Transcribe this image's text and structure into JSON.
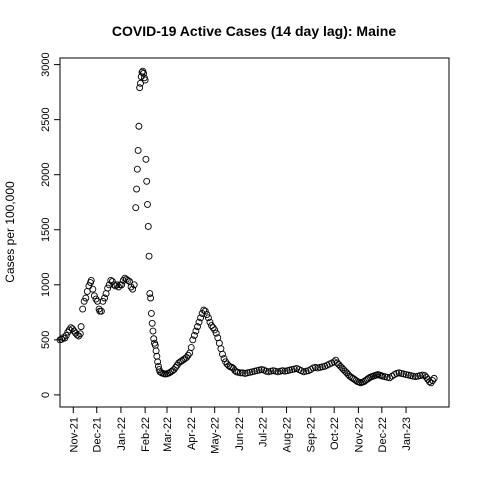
{
  "chart_data": {
    "type": "scatter",
    "title": "COVID-19 Active Cases (14 day lag): Maine",
    "xlabel": "",
    "ylabel": "Cases per 100,000",
    "y_ticks": [
      0,
      500,
      1000,
      1500,
      2000,
      2500,
      3000
    ],
    "x_ticks": [
      {
        "label": "Nov-21",
        "x": "2021-11-01"
      },
      {
        "label": "Dec-21",
        "x": "2021-12-01"
      },
      {
        "label": "Jan-22",
        "x": "2022-01-01"
      },
      {
        "label": "Feb-22",
        "x": "2022-02-01"
      },
      {
        "label": "Mar-22",
        "x": "2022-03-01"
      },
      {
        "label": "Apr-22",
        "x": "2022-04-01"
      },
      {
        "label": "May-22",
        "x": "2022-05-01"
      },
      {
        "label": "Jun-22",
        "x": "2022-06-01"
      },
      {
        "label": "Jul-22",
        "x": "2022-07-01"
      },
      {
        "label": "Aug-22",
        "x": "2022-08-01"
      },
      {
        "label": "Sep-22",
        "x": "2022-09-01"
      },
      {
        "label": "Oct-22",
        "x": "2022-10-01"
      },
      {
        "label": "Nov-22",
        "x": "2022-11-01"
      },
      {
        "label": "Dec-22",
        "x": "2022-12-01"
      },
      {
        "label": "Jan-23",
        "x": "2023-01-01"
      }
    ],
    "xlim": [
      "2021-10-15",
      "2023-02-25"
    ],
    "ylim": [
      -110,
      3060
    ],
    "grid": false,
    "legend": "none",
    "points": [
      [
        "2021-10-15",
        500
      ],
      [
        "2021-10-17",
        505
      ],
      [
        "2021-10-19",
        520
      ],
      [
        "2021-10-21",
        515
      ],
      [
        "2021-10-23",
        540
      ],
      [
        "2021-10-25",
        570
      ],
      [
        "2021-10-27",
        590
      ],
      [
        "2021-10-29",
        610
      ],
      [
        "2021-10-31",
        600
      ],
      [
        "2021-11-02",
        580
      ],
      [
        "2021-11-04",
        560
      ],
      [
        "2021-11-06",
        545
      ],
      [
        "2021-11-08",
        535
      ],
      [
        "2021-11-10",
        555
      ],
      [
        "2021-11-11",
        620
      ],
      [
        "2021-11-13",
        780
      ],
      [
        "2021-11-15",
        850
      ],
      [
        "2021-11-17",
        880
      ],
      [
        "2021-11-19",
        940
      ],
      [
        "2021-11-21",
        990
      ],
      [
        "2021-11-23",
        1020
      ],
      [
        "2021-11-24",
        1040
      ],
      [
        "2021-11-26",
        960
      ],
      [
        "2021-11-28",
        900
      ],
      [
        "2021-11-30",
        870
      ],
      [
        "2021-12-02",
        850
      ],
      [
        "2021-12-04",
        780
      ],
      [
        "2021-12-05",
        760
      ],
      [
        "2021-12-07",
        760
      ],
      [
        "2021-12-09",
        850
      ],
      [
        "2021-12-11",
        880
      ],
      [
        "2021-12-13",
        920
      ],
      [
        "2021-12-15",
        970
      ],
      [
        "2021-12-17",
        1000
      ],
      [
        "2021-12-19",
        1040
      ],
      [
        "2021-12-21",
        1030
      ],
      [
        "2021-12-23",
        1000
      ],
      [
        "2021-12-25",
        990
      ],
      [
        "2021-12-27",
        1000
      ],
      [
        "2021-12-29",
        980
      ],
      [
        "2021-12-31",
        1000
      ],
      [
        "2022-01-02",
        1000
      ],
      [
        "2022-01-04",
        1040
      ],
      [
        "2022-01-06",
        1060
      ],
      [
        "2022-01-08",
        1050
      ],
      [
        "2022-01-10",
        1040
      ],
      [
        "2022-01-12",
        1030
      ],
      [
        "2022-01-14",
        980
      ],
      [
        "2022-01-16",
        960
      ],
      [
        "2022-01-18",
        1000
      ],
      [
        "2022-01-20",
        1700
      ],
      [
        "2022-01-21",
        1870
      ],
      [
        "2022-01-22",
        2050
      ],
      [
        "2022-01-23",
        2220
      ],
      [
        "2022-01-24",
        2440
      ],
      [
        "2022-01-25",
        2790
      ],
      [
        "2022-01-26",
        2830
      ],
      [
        "2022-01-27",
        2890
      ],
      [
        "2022-01-28",
        2930
      ],
      [
        "2022-01-29",
        2940
      ],
      [
        "2022-01-30",
        2920
      ],
      [
        "2022-01-31",
        2880
      ],
      [
        "2022-02-01",
        2860
      ],
      [
        "2022-02-02",
        2140
      ],
      [
        "2022-02-03",
        1940
      ],
      [
        "2022-02-04",
        1730
      ],
      [
        "2022-02-05",
        1530
      ],
      [
        "2022-02-06",
        1260
      ],
      [
        "2022-02-07",
        920
      ],
      [
        "2022-02-08",
        880
      ],
      [
        "2022-02-09",
        740
      ],
      [
        "2022-02-10",
        650
      ],
      [
        "2022-02-11",
        580
      ],
      [
        "2022-02-12",
        510
      ],
      [
        "2022-02-13",
        470
      ],
      [
        "2022-02-14",
        450
      ],
      [
        "2022-02-15",
        400
      ],
      [
        "2022-02-16",
        350
      ],
      [
        "2022-02-17",
        300
      ],
      [
        "2022-02-18",
        260
      ],
      [
        "2022-02-19",
        230
      ],
      [
        "2022-02-20",
        210
      ],
      [
        "2022-02-22",
        200
      ],
      [
        "2022-02-24",
        195
      ],
      [
        "2022-02-26",
        190
      ],
      [
        "2022-02-28",
        190
      ],
      [
        "2022-03-02",
        195
      ],
      [
        "2022-03-04",
        200
      ],
      [
        "2022-03-06",
        210
      ],
      [
        "2022-03-08",
        220
      ],
      [
        "2022-03-10",
        230
      ],
      [
        "2022-03-12",
        250
      ],
      [
        "2022-03-14",
        270
      ],
      [
        "2022-03-16",
        290
      ],
      [
        "2022-03-18",
        300
      ],
      [
        "2022-03-20",
        310
      ],
      [
        "2022-03-22",
        320
      ],
      [
        "2022-03-24",
        330
      ],
      [
        "2022-03-26",
        340
      ],
      [
        "2022-03-28",
        360
      ],
      [
        "2022-03-30",
        380
      ],
      [
        "2022-04-01",
        430
      ],
      [
        "2022-04-03",
        500
      ],
      [
        "2022-04-05",
        540
      ],
      [
        "2022-04-07",
        580
      ],
      [
        "2022-04-09",
        620
      ],
      [
        "2022-04-11",
        660
      ],
      [
        "2022-04-13",
        700
      ],
      [
        "2022-04-15",
        740
      ],
      [
        "2022-04-17",
        770
      ],
      [
        "2022-04-19",
        760
      ],
      [
        "2022-04-21",
        730
      ],
      [
        "2022-04-23",
        700
      ],
      [
        "2022-04-25",
        660
      ],
      [
        "2022-04-27",
        630
      ],
      [
        "2022-04-29",
        610
      ],
      [
        "2022-05-01",
        590
      ],
      [
        "2022-05-03",
        560
      ],
      [
        "2022-05-05",
        520
      ],
      [
        "2022-05-07",
        470
      ],
      [
        "2022-05-09",
        420
      ],
      [
        "2022-05-11",
        370
      ],
      [
        "2022-05-13",
        330
      ],
      [
        "2022-05-15",
        300
      ],
      [
        "2022-05-17",
        280
      ],
      [
        "2022-05-19",
        265
      ],
      [
        "2022-05-21",
        255
      ],
      [
        "2022-05-23",
        250
      ],
      [
        "2022-05-25",
        240
      ],
      [
        "2022-05-27",
        220
      ],
      [
        "2022-05-29",
        210
      ],
      [
        "2022-05-31",
        205
      ],
      [
        "2022-06-03",
        200
      ],
      [
        "2022-06-06",
        200
      ],
      [
        "2022-06-09",
        195
      ],
      [
        "2022-06-12",
        200
      ],
      [
        "2022-06-15",
        205
      ],
      [
        "2022-06-18",
        210
      ],
      [
        "2022-06-21",
        215
      ],
      [
        "2022-06-24",
        220
      ],
      [
        "2022-06-27",
        225
      ],
      [
        "2022-06-30",
        230
      ],
      [
        "2022-07-03",
        225
      ],
      [
        "2022-07-06",
        215
      ],
      [
        "2022-07-09",
        210
      ],
      [
        "2022-07-12",
        215
      ],
      [
        "2022-07-15",
        220
      ],
      [
        "2022-07-18",
        215
      ],
      [
        "2022-07-21",
        210
      ],
      [
        "2022-07-24",
        215
      ],
      [
        "2022-07-27",
        220
      ],
      [
        "2022-07-30",
        215
      ],
      [
        "2022-08-02",
        220
      ],
      [
        "2022-08-05",
        225
      ],
      [
        "2022-08-08",
        230
      ],
      [
        "2022-08-11",
        235
      ],
      [
        "2022-08-14",
        240
      ],
      [
        "2022-08-17",
        230
      ],
      [
        "2022-08-20",
        220
      ],
      [
        "2022-08-23",
        210
      ],
      [
        "2022-08-26",
        215
      ],
      [
        "2022-08-29",
        220
      ],
      [
        "2022-09-01",
        230
      ],
      [
        "2022-09-04",
        245
      ],
      [
        "2022-09-07",
        250
      ],
      [
        "2022-09-10",
        245
      ],
      [
        "2022-09-13",
        250
      ],
      [
        "2022-09-16",
        255
      ],
      [
        "2022-09-19",
        260
      ],
      [
        "2022-09-22",
        270
      ],
      [
        "2022-09-25",
        280
      ],
      [
        "2022-09-28",
        290
      ],
      [
        "2022-10-01",
        300
      ],
      [
        "2022-10-03",
        315
      ],
      [
        "2022-10-05",
        290
      ],
      [
        "2022-10-07",
        275
      ],
      [
        "2022-10-09",
        260
      ],
      [
        "2022-10-11",
        245
      ],
      [
        "2022-10-13",
        230
      ],
      [
        "2022-10-15",
        215
      ],
      [
        "2022-10-17",
        200
      ],
      [
        "2022-10-19",
        185
      ],
      [
        "2022-10-21",
        170
      ],
      [
        "2022-10-23",
        160
      ],
      [
        "2022-10-25",
        150
      ],
      [
        "2022-10-27",
        140
      ],
      [
        "2022-10-29",
        130
      ],
      [
        "2022-10-31",
        120
      ],
      [
        "2022-11-02",
        115
      ],
      [
        "2022-11-04",
        110
      ],
      [
        "2022-11-06",
        115
      ],
      [
        "2022-11-08",
        120
      ],
      [
        "2022-11-10",
        130
      ],
      [
        "2022-11-12",
        140
      ],
      [
        "2022-11-14",
        150
      ],
      [
        "2022-11-16",
        160
      ],
      [
        "2022-11-18",
        165
      ],
      [
        "2022-11-20",
        170
      ],
      [
        "2022-11-22",
        175
      ],
      [
        "2022-11-24",
        180
      ],
      [
        "2022-11-26",
        185
      ],
      [
        "2022-11-28",
        180
      ],
      [
        "2022-11-30",
        175
      ],
      [
        "2022-12-02",
        170
      ],
      [
        "2022-12-05",
        165
      ],
      [
        "2022-12-08",
        160
      ],
      [
        "2022-12-11",
        155
      ],
      [
        "2022-12-14",
        170
      ],
      [
        "2022-12-17",
        185
      ],
      [
        "2022-12-20",
        195
      ],
      [
        "2022-12-23",
        200
      ],
      [
        "2022-12-26",
        195
      ],
      [
        "2022-12-29",
        190
      ],
      [
        "2023-01-01",
        185
      ],
      [
        "2023-01-04",
        180
      ],
      [
        "2023-01-07",
        175
      ],
      [
        "2023-01-10",
        170
      ],
      [
        "2023-01-13",
        165
      ],
      [
        "2023-01-16",
        170
      ],
      [
        "2023-01-19",
        175
      ],
      [
        "2023-01-22",
        180
      ],
      [
        "2023-01-25",
        175
      ],
      [
        "2023-01-27",
        160
      ],
      [
        "2023-01-29",
        140
      ],
      [
        "2023-01-31",
        120
      ],
      [
        "2023-02-02",
        110
      ],
      [
        "2023-02-04",
        130
      ],
      [
        "2023-02-06",
        150
      ]
    ]
  }
}
